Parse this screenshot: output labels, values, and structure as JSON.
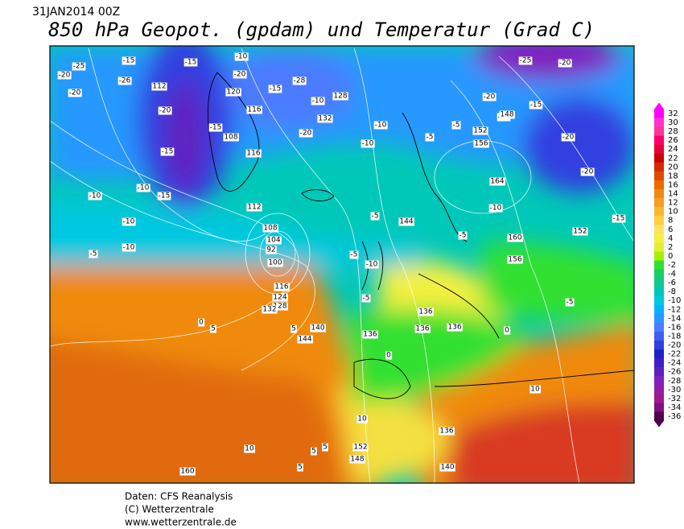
{
  "header": {
    "date": "31JAN2014 00Z",
    "title": "850 hPa Geopot. (gpdam) und  Temperatur (Grad C)"
  },
  "colorbar": {
    "ticks": [
      32,
      30,
      28,
      26,
      24,
      22,
      20,
      18,
      16,
      14,
      12,
      10,
      8,
      6,
      4,
      2,
      0,
      -2,
      -4,
      -6,
      -8,
      -10,
      -12,
      -14,
      -16,
      -18,
      -20,
      -22,
      -24,
      -26,
      -28,
      -30,
      -32,
      -34,
      -36
    ],
    "colors": [
      "#ff00ff",
      "#ff33cc",
      "#ff3399",
      "#ff0066",
      "#e6003c",
      "#cc0000",
      "#d42a00",
      "#e04a00",
      "#ec6a00",
      "#f08a10",
      "#f5a020",
      "#f8b830",
      "#fcd040",
      "#ffe060",
      "#f4f040",
      "#e0f030",
      "#a8f000",
      "#30e030",
      "#18d060",
      "#10c890",
      "#00c8b8",
      "#00c8e0",
      "#00b4ff",
      "#2898ff",
      "#4c7cff",
      "#4060f0",
      "#3040e0",
      "#2020c8",
      "#4020c0",
      "#6020c0",
      "#8020c0",
      "#9020a8",
      "#a01890",
      "#801080",
      "#500050"
    ]
  },
  "contour_labels": [
    -25,
    -20,
    -26,
    -15,
    -20,
    -15,
    -20,
    -10,
    -15,
    -28,
    -15,
    -20,
    -10,
    -15,
    -10,
    -20,
    -10,
    -15,
    -10,
    -10,
    -5,
    -10,
    -5,
    -10,
    -5,
    -25,
    -20,
    -20,
    -15,
    -15,
    -20,
    -20,
    -15,
    -10,
    -5,
    -5,
    -5,
    -10,
    -5,
    -5,
    0,
    0,
    0,
    5,
    5,
    5,
    10,
    10,
    5,
    5,
    10,
    112,
    120,
    116,
    108,
    116,
    112,
    108,
    104,
    92,
    100,
    116,
    124,
    128,
    132,
    136,
    140,
    144,
    136,
    132,
    128,
    152,
    156,
    164,
    160,
    156,
    152,
    136,
    136,
    136,
    152,
    148,
    140,
    160,
    144,
    148
  ],
  "footer": {
    "source": "Daten: CFS Reanalysis",
    "copyright": "(C) Wetterzentrale",
    "url": "www.wetterzentrale.de"
  }
}
